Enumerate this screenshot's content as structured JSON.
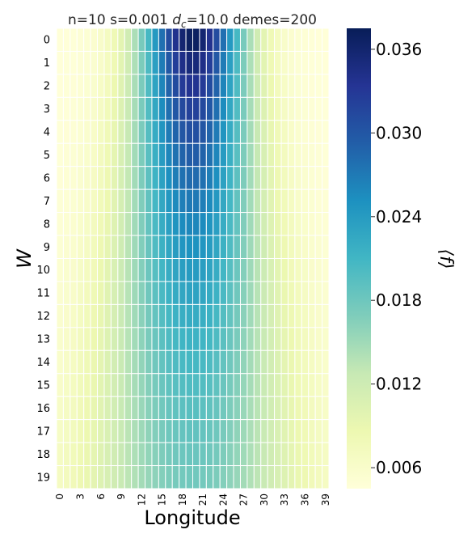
{
  "chart_data": {
    "type": "heatmap",
    "title": {
      "pre": "n=10 s=0.001 ",
      "d": "d",
      "sub": "c",
      "post": "=10.0 demes=200"
    },
    "xlabel": "Longitude",
    "ylabel": "W",
    "colorbar_label": "⟨f⟩",
    "colormap": "YlGnBu",
    "colormap_stops": [
      "#ffffd9",
      "#edf8b1",
      "#c7e9b4",
      "#7fcdbb",
      "#41b6c4",
      "#1d91c0",
      "#225ea8",
      "#253494",
      "#081d58"
    ],
    "x": [
      0,
      1,
      2,
      3,
      4,
      5,
      6,
      7,
      8,
      9,
      10,
      11,
      12,
      13,
      14,
      15,
      16,
      17,
      18,
      19,
      20,
      21,
      22,
      23,
      24,
      25,
      26,
      27,
      28,
      29,
      30,
      31,
      32,
      33,
      34,
      35,
      36,
      37,
      38,
      39
    ],
    "x_tick_labels": [
      "0",
      "3",
      "6",
      "9",
      "12",
      "15",
      "18",
      "21",
      "24",
      "27",
      "30",
      "33",
      "36",
      "39"
    ],
    "y": [
      0,
      1,
      2,
      3,
      4,
      5,
      6,
      7,
      8,
      9,
      10,
      11,
      12,
      13,
      14,
      15,
      16,
      17,
      18,
      19
    ],
    "y_tick_labels": [
      "0",
      "1",
      "2",
      "3",
      "4",
      "5",
      "6",
      "7",
      "8",
      "9",
      "10",
      "11",
      "12",
      "13",
      "14",
      "15",
      "16",
      "17",
      "18",
      "19"
    ],
    "colorbar_ticks": [
      "0.006",
      "0.012",
      "0.018",
      "0.024",
      "0.030",
      "0.036"
    ],
    "vmin": 0.0045,
    "vmax": 0.0375,
    "value_model": {
      "peak_column": 19.5,
      "base": 0.0045,
      "column_widths": [
        5.5,
        5.6,
        5.8,
        6.0,
        6.2,
        6.4,
        6.6,
        6.8,
        7.1,
        7.4,
        7.7,
        8.0,
        8.3,
        8.6,
        8.9,
        9.2,
        9.5,
        9.8,
        10.2,
        10.5
      ],
      "amplitudes": [
        0.0325,
        0.0308,
        0.0292,
        0.0277,
        0.0263,
        0.025,
        0.0238,
        0.0226,
        0.0215,
        0.0205,
        0.0195,
        0.0186,
        0.0177,
        0.0169,
        0.0162,
        0.0155,
        0.0149,
        0.0143,
        0.0138,
        0.0133
      ]
    }
  }
}
